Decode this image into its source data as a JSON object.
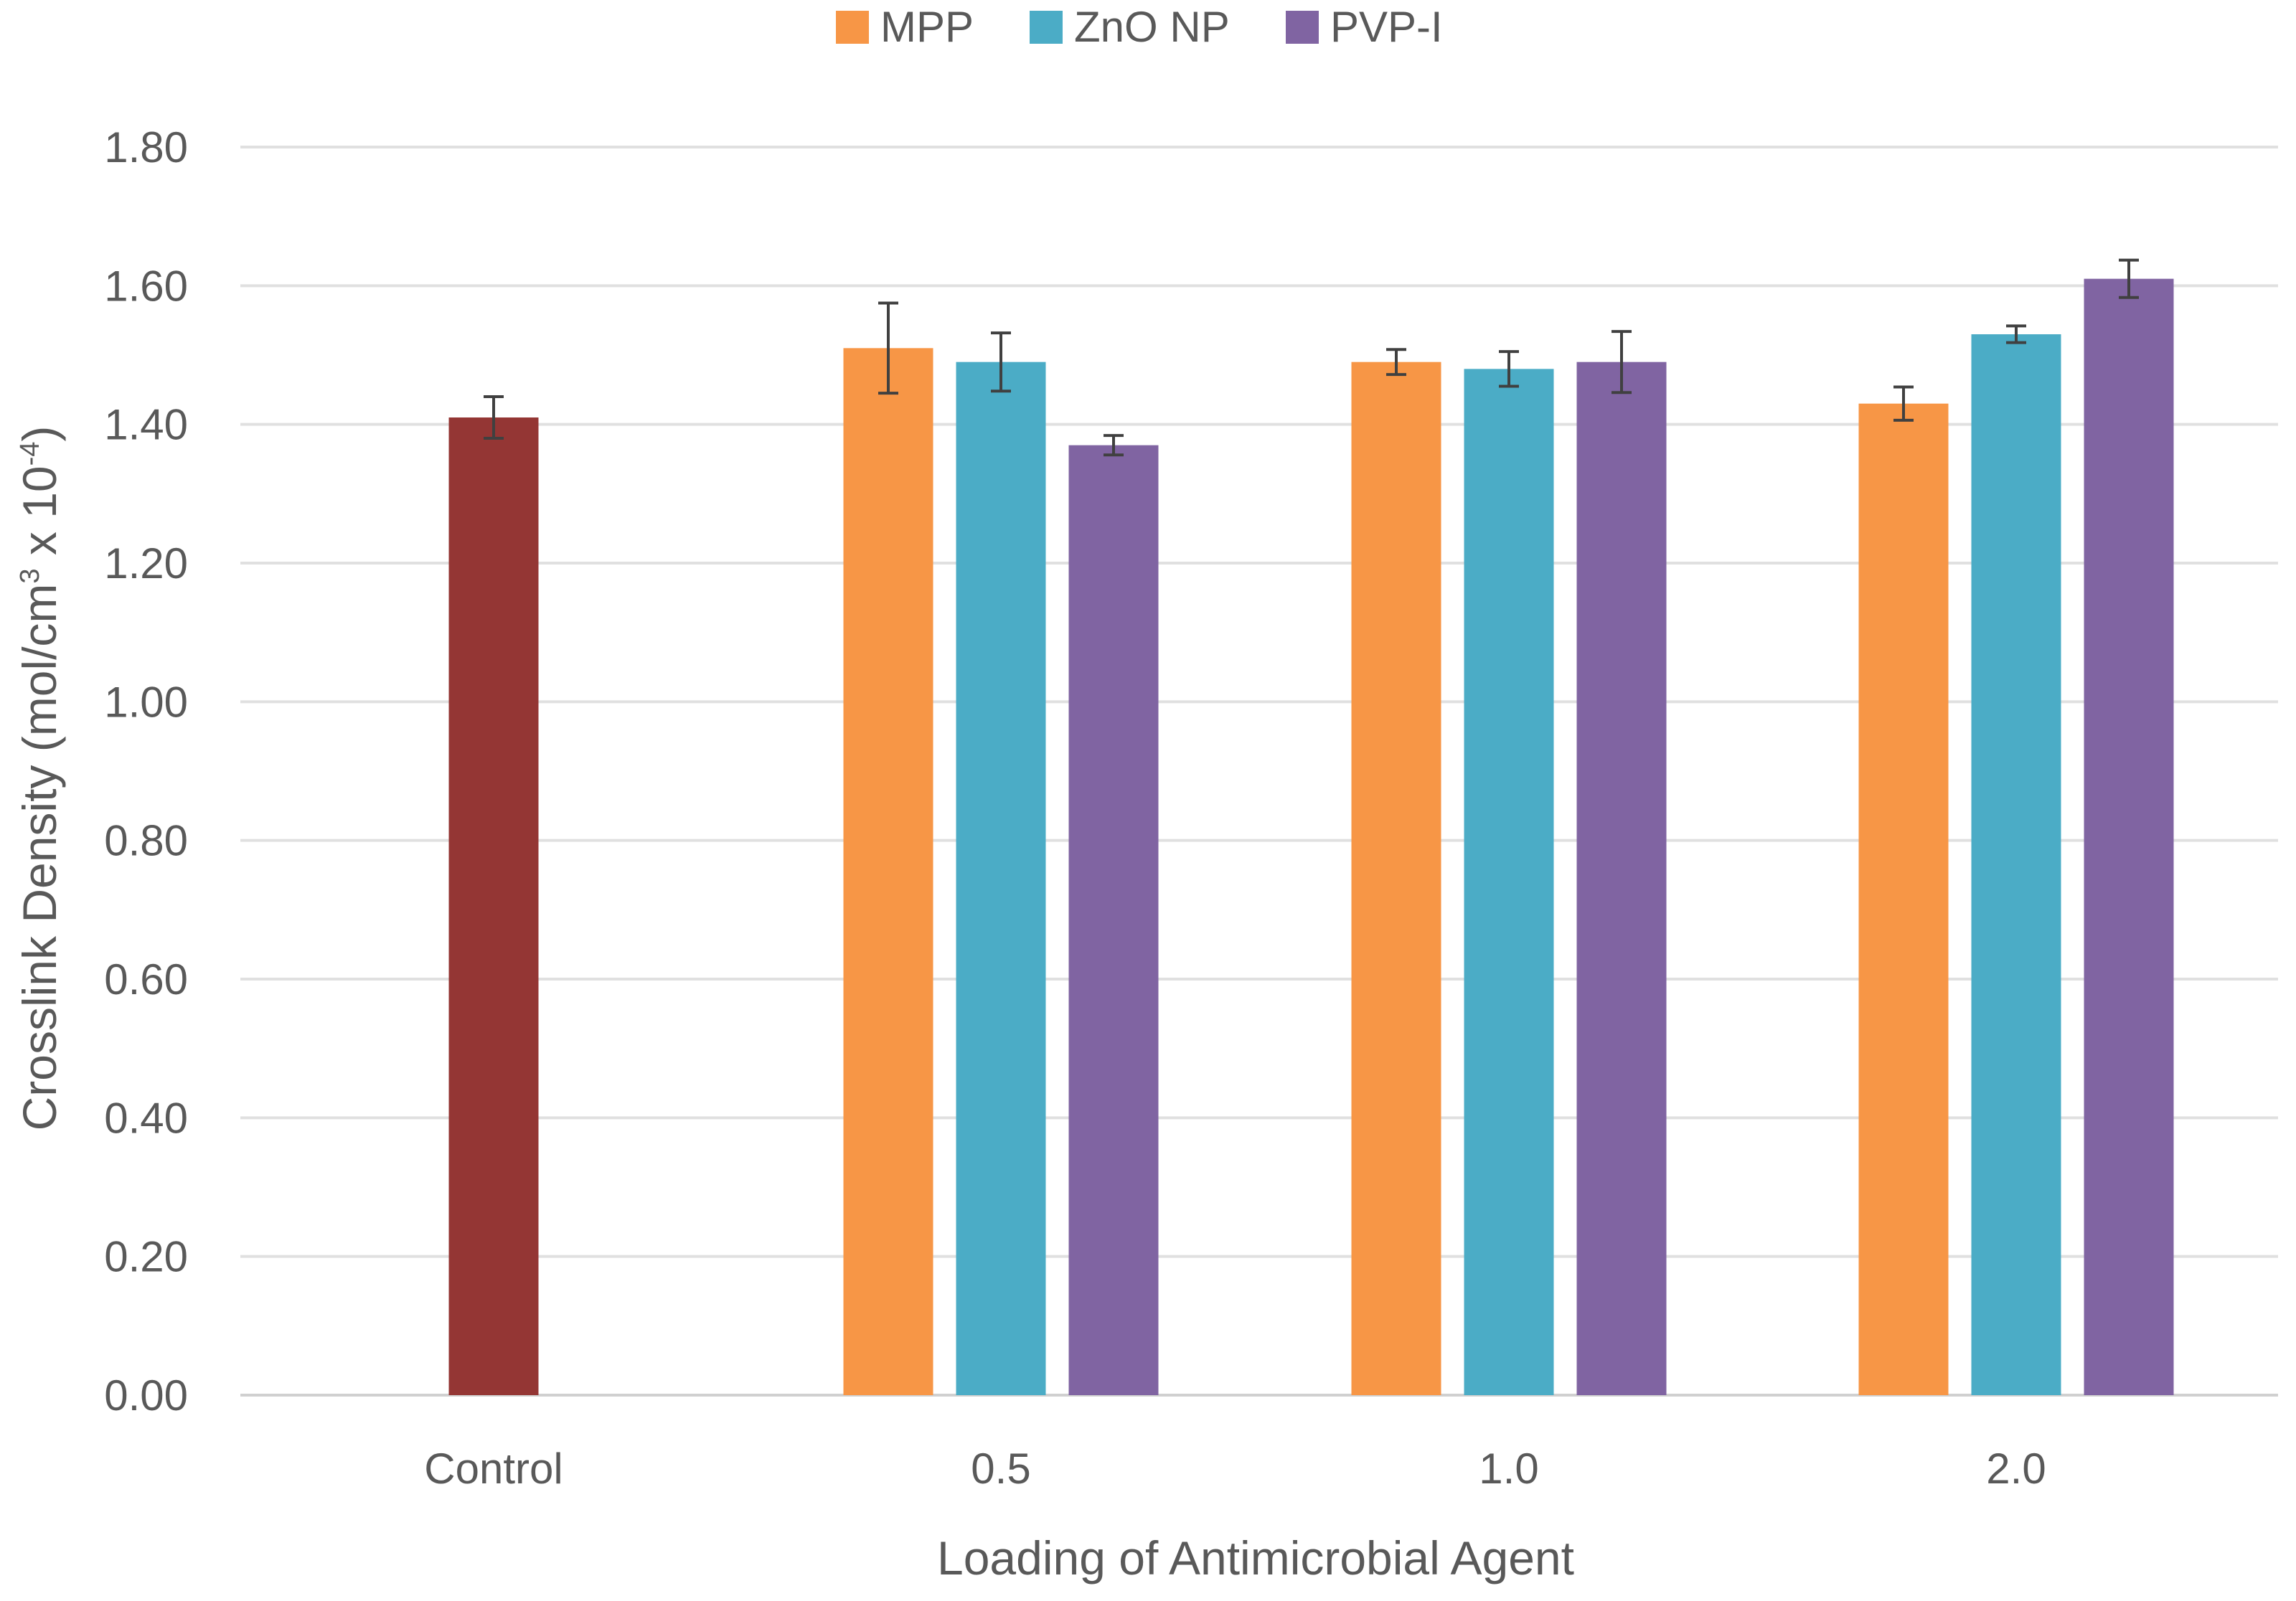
{
  "chart_data": {
    "type": "bar",
    "title": "",
    "xlabel": "Loading of Antimicrobial Agent",
    "ylabel": {
      "main": "Crosslink Density (mol/cm",
      "sup1": "3",
      "mid": " x 10",
      "sup2": "-4",
      "end": ")"
    },
    "ylim": [
      0,
      1.8
    ],
    "yticks": [
      "0.00",
      "0.20",
      "0.40",
      "0.60",
      "0.80",
      "1.00",
      "1.20",
      "1.40",
      "1.60",
      "1.80"
    ],
    "grid": true,
    "legend_position": "top-center",
    "categories": [
      "Control",
      "0.5",
      "1.0",
      "2.0"
    ],
    "control": {
      "name": "Control",
      "value": 1.41,
      "error": 0.03,
      "color": "#943634"
    },
    "series": [
      {
        "name": "MPP",
        "color": "#F79646",
        "values": [
          null,
          1.51,
          1.49,
          1.43
        ],
        "errors": [
          null,
          0.065,
          0.018,
          0.024
        ]
      },
      {
        "name": "ZnO NP",
        "color": "#4BACC6",
        "values": [
          null,
          1.49,
          1.48,
          1.53
        ],
        "errors": [
          null,
          0.042,
          0.025,
          0.012
        ]
      },
      {
        "name": "PVP-I",
        "color": "#8064A2",
        "values": [
          null,
          1.37,
          1.49,
          1.61
        ],
        "errors": [
          null,
          0.014,
          0.044,
          0.027
        ]
      }
    ]
  }
}
